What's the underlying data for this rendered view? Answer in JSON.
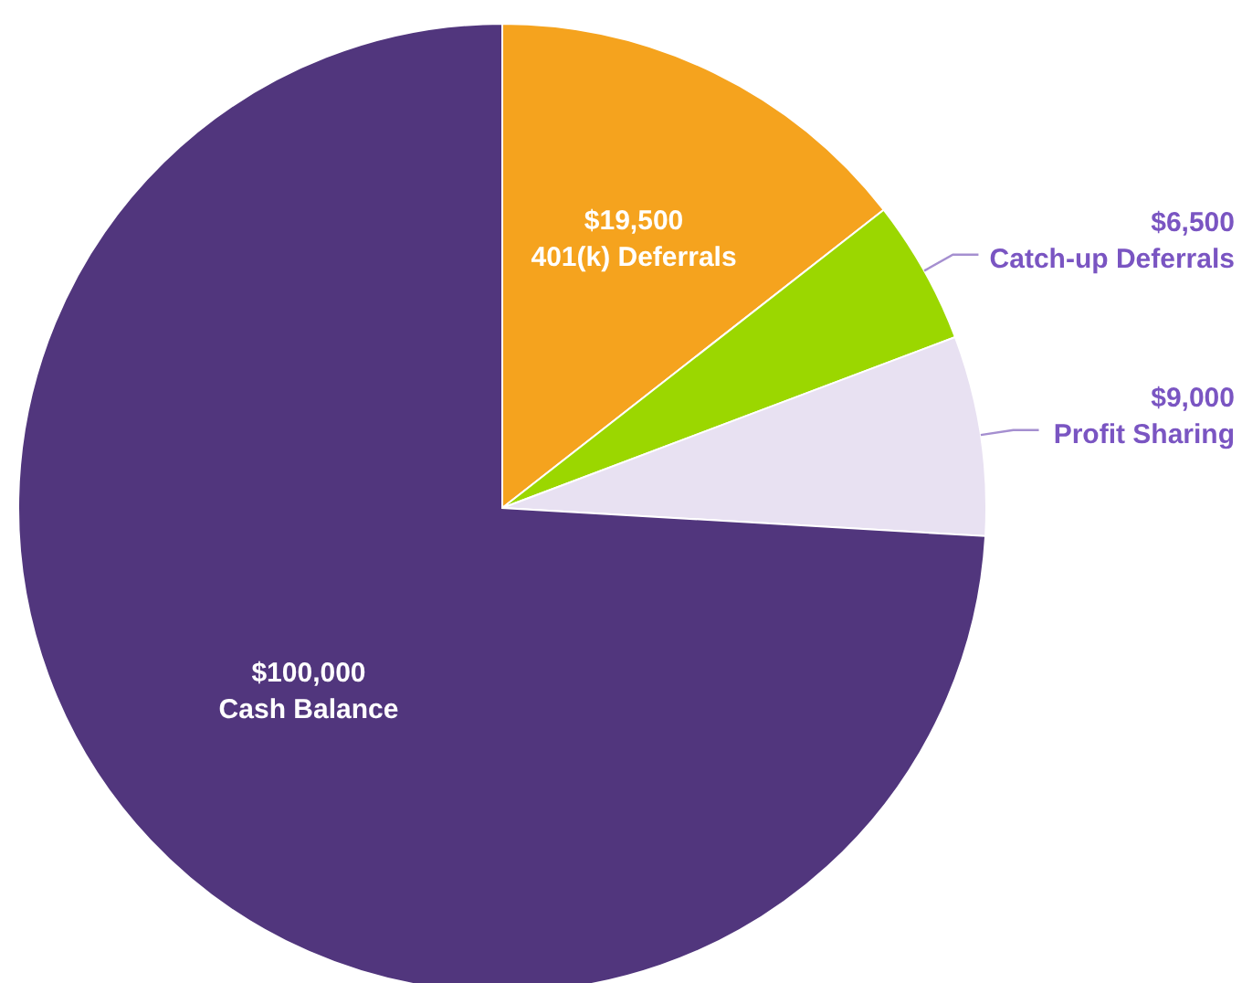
{
  "chart_data": {
    "type": "pie",
    "categories": [
      "401(k) Deferrals",
      "Catch-up Deferrals",
      "Profit Sharing",
      "Cash Balance"
    ],
    "values": [
      19500,
      6500,
      9000,
      100000
    ],
    "value_labels": [
      "$19,500",
      "$6,500",
      "$9,000",
      "$100,000"
    ],
    "colors": [
      "#f5a31e",
      "#9bd700",
      "#e8e1f2",
      "#51367d"
    ]
  }
}
